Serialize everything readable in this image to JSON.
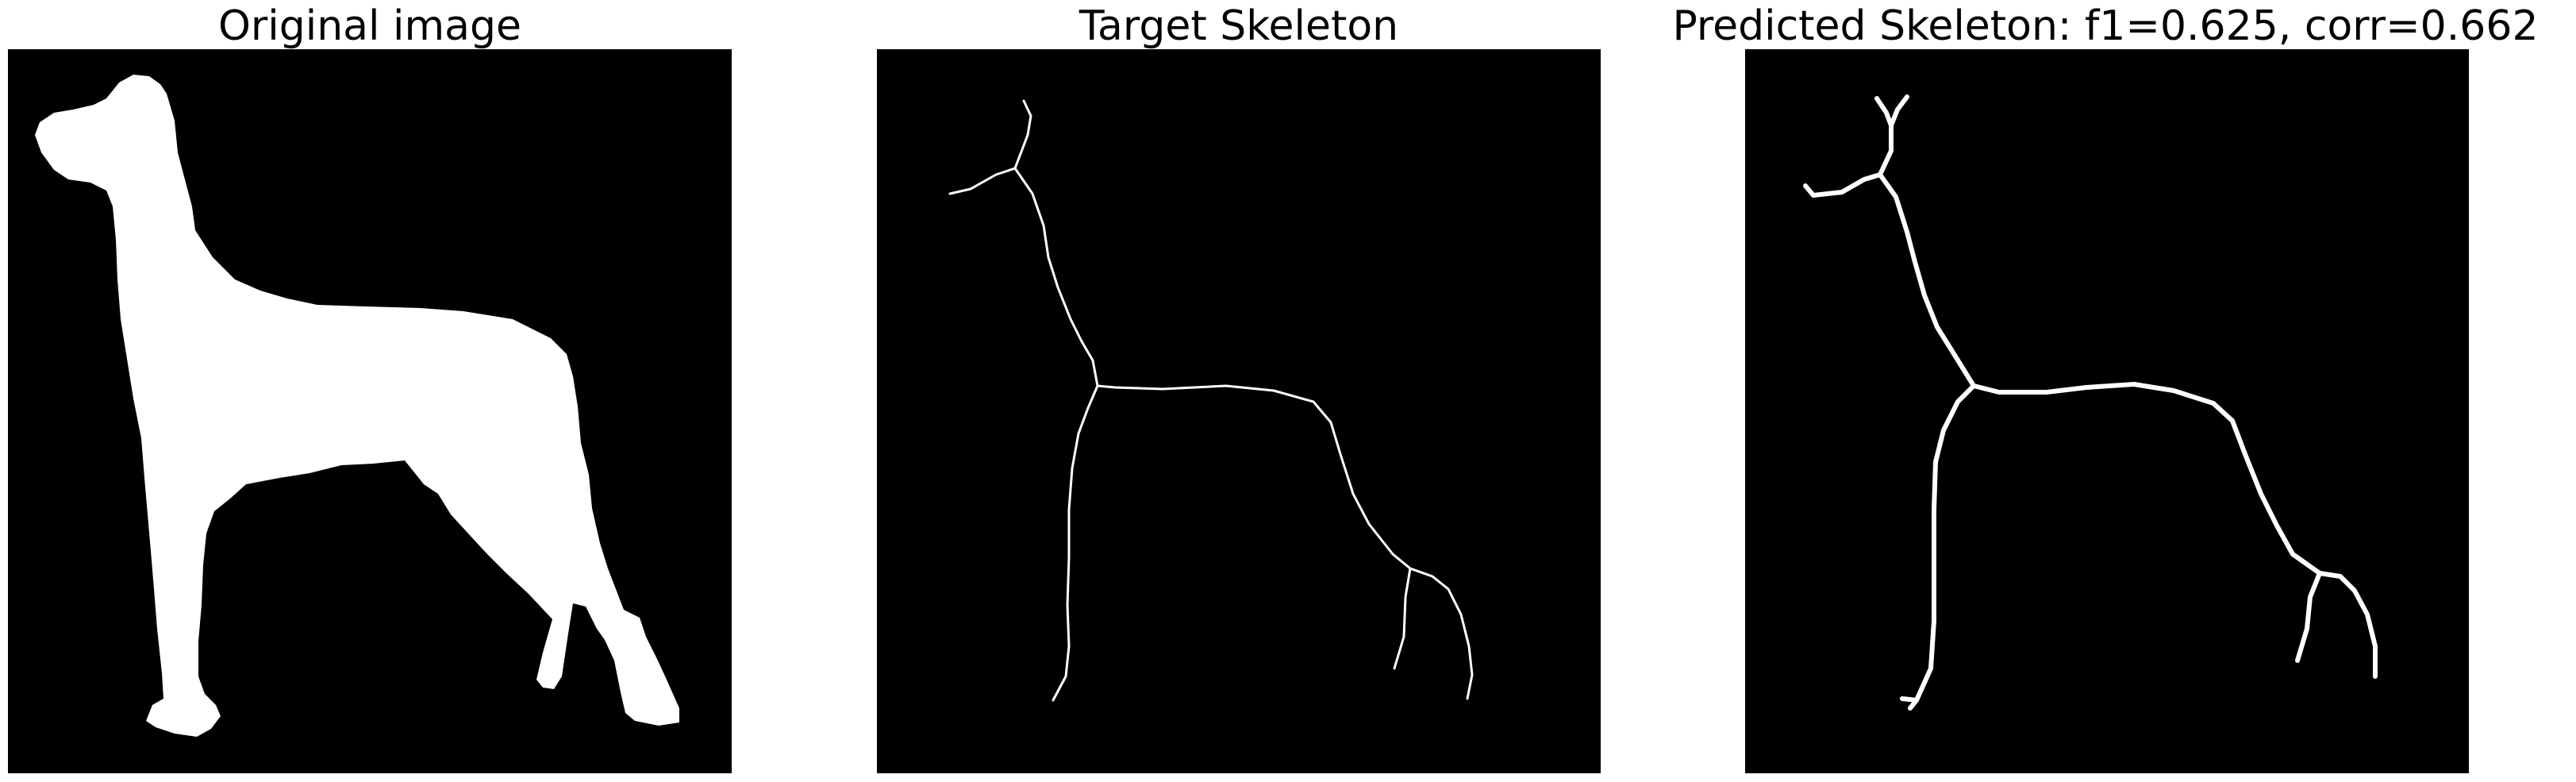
{
  "figure": {
    "panels": [
      {
        "title": "Original image"
      },
      {
        "title": "Target Skeleton"
      },
      {
        "title": "Predicted Skeleton: f1=0.625, corr=0.662"
      }
    ],
    "colors": {
      "background": "#000000",
      "foreground": "#ffffff",
      "page": "#ffffff"
    }
  }
}
